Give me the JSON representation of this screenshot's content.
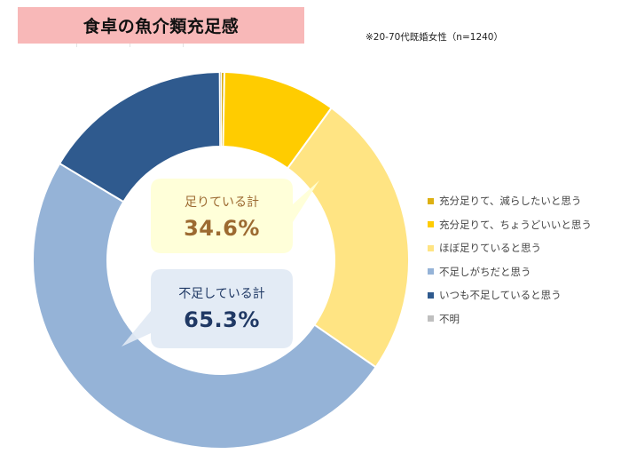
{
  "header": {
    "title": "食卓の魚介類充足感",
    "note": "※20-70代既婚女性（n=1240）"
  },
  "callouts": {
    "sufficient": {
      "label": "足りている計",
      "value": "34.6%",
      "text_color": "#9C6A31",
      "bg_color": "#FFFFD6"
    },
    "insufficient": {
      "label": "不足している計",
      "value": "65.3%",
      "text_color": "#1F3864",
      "bg_color": "#E1E9F4"
    }
  },
  "legend": {
    "items": [
      {
        "label": "充分足りて、減らしたいと思う",
        "color": "#DDB012"
      },
      {
        "label": "充分足りて、ちょうどいいと思う",
        "color": "#FFCC00"
      },
      {
        "label": "ほぼ足りていると思う",
        "color": "#FFE483"
      },
      {
        "label": "不足しがちだと思う",
        "color": "#95B3D7"
      },
      {
        "label": "いつも不足していると思う",
        "color": "#2F5A8E"
      },
      {
        "label": "不明",
        "color": "#BFBFBF"
      }
    ]
  },
  "chart_data": {
    "type": "pie",
    "subtype": "donut",
    "title": "食卓の魚介類充足感",
    "subtitle": "※20-70代既婚女性（n=1240）",
    "categories": [
      "充分足りて、減らしたいと思う",
      "充分足りて、ちょうどいいと思う",
      "ほぼ足りていると思う",
      "不足しがちだと思う",
      "いつも不足していると思う",
      "不明"
    ],
    "values": [
      0.3,
      9.7,
      24.6,
      49.0,
      16.3,
      0.1
    ],
    "colors": [
      "#DDB012",
      "#FFCC00",
      "#FFE483",
      "#95B3D7",
      "#2F5A8E",
      "#BFBFBF"
    ],
    "unit": "%",
    "start_angle": "12 o'clock, clockwise",
    "annotations": [
      {
        "text": "足りている計 34.6%",
        "sum_of": [
          0,
          1,
          2
        ]
      },
      {
        "text": "不足している計 65.3%",
        "sum_of": [
          3,
          4
        ]
      }
    ],
    "legend_position": "right"
  }
}
